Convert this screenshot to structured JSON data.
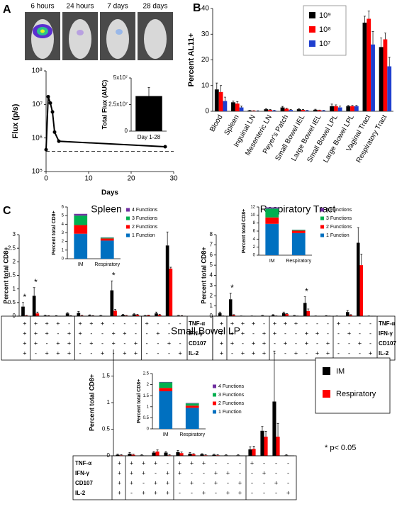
{
  "panel_labels": [
    "A",
    "B",
    "C"
  ],
  "image_captions": [
    "6 hours",
    "24 hours",
    "7 days",
    "28 days"
  ],
  "chart_data": [
    {
      "type": "line",
      "ylabel": "Flux (p/s)",
      "xlabel": "Days",
      "x": [
        0,
        0.5,
        1,
        1.5,
        2,
        3,
        28
      ],
      "values": [
        450000,
        17000000,
        11000000,
        6000000,
        1500000,
        800000,
        550000
      ],
      "color": "#000000",
      "baseline": 400000,
      "ylog": true,
      "xlim": [
        0,
        30
      ],
      "xticks": [
        0,
        10,
        20,
        30
      ],
      "ylim": [
        100000,
        100000000
      ],
      "yticks": [
        {
          "value": 100000,
          "label": "10⁵"
        },
        {
          "value": 1000000,
          "label": "10⁶"
        },
        {
          "value": 10000000,
          "label": "10⁷"
        },
        {
          "value": 100000000,
          "label": "10⁸"
        }
      ]
    },
    {
      "type": "bar",
      "ylabel": "Total Flux (AUC)",
      "categories": [
        "Day 1-28"
      ],
      "values": [
        33000000
      ],
      "errors": [
        8000000
      ],
      "color": "#000000",
      "ylim": [
        0,
        50000000
      ],
      "yticks": [
        0,
        {
          "value": 25000000,
          "label": "2.5x10⁷"
        },
        {
          "value": 50000000,
          "label": "5x10⁷"
        }
      ]
    },
    {
      "type": "bar",
      "ylabel": "Percent AL11+",
      "categories": [
        "Blood",
        "Spleen",
        "Inguinal LN",
        "Mesenteric LN",
        "Peyer's Patch",
        "Small Bowel IEL",
        "Large Bowel IEL",
        "Small Bowel LPL",
        "Large Bowel LPL",
        "Vaginal Tract",
        "Respiratory Tract"
      ],
      "series": [
        {
          "name": "10⁹",
          "color": "#000000",
          "values": [
            8.5,
            3.5,
            0.3,
            0.8,
            1.5,
            0.8,
            0.6,
            2,
            2,
            34.5,
            25
          ],
          "errors": [
            2.5,
            0.5,
            0.1,
            0.2,
            0.4,
            0.2,
            0.2,
            0.8,
            0.3,
            2.5,
            3.5
          ]
        },
        {
          "name": "10⁸",
          "color": "#ff0000",
          "values": [
            7.5,
            3,
            0.2,
            0.5,
            1,
            0.5,
            0.4,
            2,
            2,
            36,
            28
          ],
          "errors": [
            2.5,
            0.8,
            0.1,
            0.2,
            0.3,
            0.2,
            0.1,
            0.5,
            0.3,
            3,
            2.5
          ]
        },
        {
          "name": "10⁷",
          "color": "#1f3fcf",
          "values": [
            4,
            1.5,
            0.1,
            0.3,
            0.5,
            0.3,
            0.3,
            1.5,
            2,
            26,
            17.5
          ],
          "errors": [
            1.5,
            0.5,
            0.1,
            0.1,
            0.2,
            0.1,
            0.1,
            0.5,
            0.3,
            5,
            3.5
          ]
        }
      ],
      "ylim": [
        0,
        40
      ],
      "yticks": [
        0,
        10,
        20,
        30,
        40
      ],
      "legend": true
    },
    {
      "type": "bar",
      "title": "Spleen",
      "ylabel": "Percent total CD8+",
      "series": [
        {
          "name": "IM",
          "color": "#000000",
          "values": [
            0.35,
            0.75,
            0.02,
            0.01,
            0.1,
            0.12,
            0.03,
            0.02,
            0.95,
            0.05,
            0.07,
            0.02,
            0.1,
            2.6,
            0.02
          ],
          "errors": [
            0.15,
            0.3,
            0.02,
            0.01,
            0.03,
            0.05,
            0.02,
            0.01,
            0.35,
            0.02,
            0.03,
            0.01,
            0.05,
            0.5,
            0.01
          ]
        },
        {
          "name": "Respiratory",
          "color": "#ff0000",
          "values": [
            0.02,
            0.1,
            0.01,
            0,
            0.01,
            0.02,
            0.01,
            0,
            0.2,
            0.02,
            0.05,
            0.03,
            0.05,
            1.75,
            0.01
          ],
          "errors": [
            0.01,
            0.05,
            0.01,
            0,
            0.01,
            0.01,
            0.01,
            0,
            0.05,
            0.01,
            0.02,
            0.01,
            0.02,
            0.05,
            0.01
          ]
        }
      ],
      "ylim": [
        0,
        3
      ],
      "yticks": [
        0,
        0.5,
        1,
        1.5,
        2,
        2.5,
        3
      ],
      "annotations": [
        {
          "text": "*",
          "column": 0
        },
        {
          "text": "*",
          "column": 1
        },
        {
          "text": "*",
          "column": 8
        }
      ],
      "function_table": {
        "rows": [
          "TNF-α",
          "IFN-γ",
          "CD107",
          "IL-2"
        ],
        "signs": [
          [
            "+",
            "+",
            "+",
            "+",
            "-",
            "+",
            "+",
            "+",
            "-",
            "-",
            "-",
            "+",
            "-",
            "-",
            "-"
          ],
          [
            "+",
            "+",
            "+",
            "-",
            "+",
            "+",
            "-",
            "-",
            "+",
            "+",
            "-",
            "-",
            "+",
            "-",
            "-"
          ],
          [
            "+",
            "+",
            "-",
            "+",
            "+",
            "-",
            "+",
            "-",
            "+",
            "-",
            "+",
            "-",
            "-",
            "+",
            "-"
          ],
          [
            "+",
            "-",
            "+",
            "+",
            "+",
            "-",
            "-",
            "+",
            "-",
            "+",
            "+",
            "-",
            "-",
            "-",
            "+"
          ]
        ]
      },
      "sign_colors": [
        "#00a651",
        "#0070c0",
        "#ff0000",
        "#7030a0"
      ]
    },
    {
      "type": "stacked_bar",
      "ylabel": "Percent total CD8+",
      "categories": [
        "IM",
        "Respiratory"
      ],
      "series": [
        {
          "name": "4 Functions",
          "color": "#7030a0",
          "values": [
            0.2,
            0.03
          ]
        },
        {
          "name": "3 Functions",
          "color": "#00b050",
          "values": [
            1.1,
            0.1
          ]
        },
        {
          "name": "2 Functions",
          "color": "#ff0000",
          "values": [
            1.0,
            0.25
          ]
        },
        {
          "name": "1 Function",
          "color": "#0070c0",
          "values": [
            2.9,
            2.1
          ]
        }
      ],
      "ylim": [
        0,
        6
      ],
      "yticks": [
        0,
        1,
        2,
        3,
        4,
        5,
        6
      ],
      "legend": true
    },
    {
      "type": "bar",
      "title": "Respiratory Tract",
      "ylabel": "Percent total CD8+",
      "series": [
        {
          "name": "IM",
          "color": "#000000",
          "values": [
            0.3,
            1.65,
            0.02,
            0.02,
            0.05,
            0.1,
            0.3,
            0.05,
            1.3,
            0.02,
            0.03,
            0.02,
            0.4,
            7.2,
            0.02
          ],
          "errors": [
            0.1,
            0.6,
            0.01,
            0.01,
            0.03,
            0.05,
            0.1,
            0.03,
            0.6,
            0.01,
            0.02,
            0.01,
            0.15,
            1.5,
            0.01
          ]
        },
        {
          "name": "Respiratory",
          "color": "#ff0000",
          "values": [
            0.02,
            0.1,
            0,
            0,
            0,
            0.02,
            0.2,
            0.01,
            0.5,
            0,
            0.01,
            0,
            0.1,
            5,
            0
          ],
          "errors": [
            0.01,
            0.05,
            0,
            0,
            0,
            0.01,
            0.05,
            0.01,
            0.2,
            0,
            0.01,
            0,
            0.05,
            1.1,
            0
          ]
        }
      ],
      "ylim": [
        0,
        8
      ],
      "yticks": [
        0,
        1,
        2,
        3,
        4,
        5,
        6,
        7,
        8
      ],
      "annotations": [
        {
          "text": "*",
          "column": 1
        },
        {
          "text": "*",
          "column": 8
        }
      ],
      "function_table": {
        "rows": [
          "TNF-α",
          "IFN-γ",
          "CD107",
          "IL-2"
        ],
        "signs": [
          [
            "+",
            "+",
            "+",
            "+",
            "-",
            "+",
            "+",
            "+",
            "-",
            "-",
            "-",
            "+",
            "-",
            "-",
            "-"
          ],
          [
            "+",
            "+",
            "+",
            "-",
            "+",
            "+",
            "-",
            "-",
            "+",
            "+",
            "-",
            "-",
            "+",
            "-",
            "-"
          ],
          [
            "+",
            "+",
            "-",
            "+",
            "+",
            "-",
            "+",
            "-",
            "+",
            "-",
            "+",
            "-",
            "-",
            "+",
            "-"
          ],
          [
            "+",
            "-",
            "+",
            "+",
            "+",
            "-",
            "-",
            "+",
            "-",
            "+",
            "+",
            "-",
            "-",
            "-",
            "+"
          ]
        ]
      },
      "sign_colors": [
        "#00a651",
        "#0070c0",
        "#ff0000",
        "#7030a0"
      ]
    },
    {
      "type": "stacked_bar",
      "ylabel": "Percent total CD8+",
      "categories": [
        "IM",
        "Respiratory"
      ],
      "series": [
        {
          "name": "4 Functions",
          "color": "#7030a0",
          "values": [
            0.3,
            0.05
          ]
        },
        {
          "name": "3 Functions",
          "color": "#00b050",
          "values": [
            2.2,
            0.2
          ]
        },
        {
          "name": "2 Functions",
          "color": "#ff0000",
          "values": [
            1.6,
            0.6
          ]
        },
        {
          "name": "1 Function",
          "color": "#0070c0",
          "values": [
            7.8,
            5.5
          ]
        }
      ],
      "ylim": [
        0,
        12
      ],
      "yticks": [
        0,
        2,
        4,
        6,
        8,
        10,
        12
      ],
      "legend": true
    },
    {
      "type": "bar",
      "title": "Small Bowel LP",
      "ylabel": "Percent total CD8+",
      "series": [
        {
          "name": "IM",
          "color": "#000000",
          "values": [
            0.02,
            0.04,
            0.01,
            0.06,
            0.06,
            0.07,
            0.04,
            0.03,
            0.02,
            0.01,
            0.01,
            0.12,
            0.47,
            1.02,
            0.01
          ],
          "errors": [
            0.01,
            0.02,
            0.01,
            0.02,
            0.02,
            0.03,
            0.02,
            0.01,
            0.01,
            0.01,
            0.01,
            0.05,
            0.08,
            0.95,
            0.01
          ]
        },
        {
          "name": "Respiratory",
          "color": "#ff0000",
          "values": [
            0.01,
            0.02,
            0,
            0.08,
            0.01,
            0.05,
            0.03,
            0.01,
            0.01,
            0,
            0,
            0.13,
            0.36,
            0.36,
            0
          ],
          "errors": [
            0.01,
            0.01,
            0,
            0.03,
            0.01,
            0.02,
            0.01,
            0.01,
            0.01,
            0,
            0,
            0.05,
            0.1,
            0.25,
            0
          ]
        }
      ],
      "ylim": [
        0,
        2
      ],
      "yticks": [
        0,
        0.5,
        1,
        1.5
      ],
      "legend": true,
      "note": "* p< 0.05",
      "function_table": {
        "rows": [
          "TNF-α",
          "IFN-γ",
          "CD107",
          "IL-2"
        ],
        "signs": [
          [
            "+",
            "+",
            "+",
            "+",
            "-",
            "+",
            "+",
            "+",
            "-",
            "-",
            "-",
            "+",
            "-",
            "-",
            "-"
          ],
          [
            "+",
            "+",
            "+",
            "-",
            "+",
            "+",
            "-",
            "-",
            "+",
            "+",
            "-",
            "-",
            "+",
            "-",
            "-"
          ],
          [
            "+",
            "+",
            "-",
            "+",
            "+",
            "-",
            "+",
            "-",
            "+",
            "-",
            "+",
            "-",
            "-",
            "+",
            "-"
          ],
          [
            "+",
            "-",
            "+",
            "+",
            "+",
            "-",
            "-",
            "+",
            "-",
            "+",
            "+",
            "-",
            "-",
            "-",
            "+"
          ]
        ]
      },
      "sign_colors": [
        "#00a651",
        "#0070c0",
        "#ff0000",
        "#7030a0"
      ]
    },
    {
      "type": "stacked_bar",
      "ylabel": "Percent total CD8+",
      "categories": [
        "IM",
        "Respiratory"
      ],
      "series": [
        {
          "name": "4 Functions",
          "color": "#7030a0",
          "values": [
            0.02,
            0.02
          ]
        },
        {
          "name": "3 Functions",
          "color": "#00b050",
          "values": [
            0.25,
            0.1
          ]
        },
        {
          "name": "2 Functions",
          "color": "#ff0000",
          "values": [
            0.15,
            0.1
          ]
        },
        {
          "name": "1 Function",
          "color": "#0070c0",
          "values": [
            1.7,
            0.95
          ]
        }
      ],
      "ylim": [
        0,
        2.5
      ],
      "yticks": [
        0,
        0.5,
        1,
        1.5,
        2,
        2.5
      ],
      "legend": true
    }
  ]
}
